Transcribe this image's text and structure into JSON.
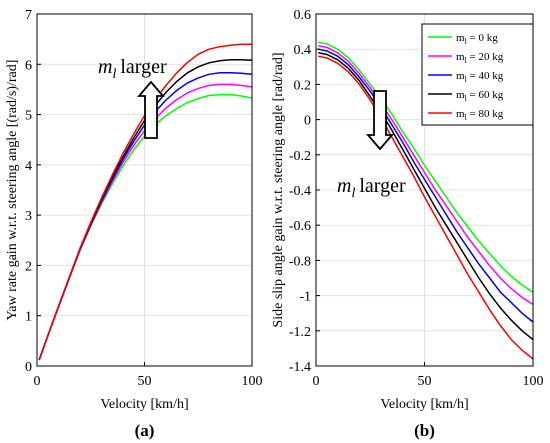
{
  "chart_data": [
    {
      "type": "line",
      "panel_label": "(a)",
      "xlabel": "Velocity [km/h]",
      "ylabel": "Yaw rate gain w.r.t. steering angle [(rad/s)/rad]",
      "xlim": [
        0,
        100
      ],
      "ylim": [
        0,
        7
      ],
      "x_ticks": [
        "0",
        "50",
        "100"
      ],
      "y_ticks": [
        "0",
        "1",
        "2",
        "3",
        "4",
        "5",
        "6",
        "7"
      ],
      "grid": true,
      "annotation": {
        "symbol": "m",
        "subscript": "l",
        "text": "larger",
        "arrow": "up"
      },
      "x": [
        1,
        5,
        10,
        15,
        20,
        25,
        30,
        35,
        40,
        45,
        50,
        55,
        60,
        65,
        70,
        75,
        80,
        85,
        90,
        95,
        100
      ],
      "series": [
        {
          "name": "m_l = 0 kg",
          "color": "#00ff00",
          "values": [
            0.12,
            0.6,
            1.18,
            1.75,
            2.3,
            2.78,
            3.22,
            3.62,
            3.98,
            4.3,
            4.57,
            4.8,
            4.98,
            5.12,
            5.24,
            5.32,
            5.38,
            5.4,
            5.4,
            5.37,
            5.33
          ]
        },
        {
          "name": "m_l = 20 kg",
          "color": "#ff00ff",
          "values": [
            0.12,
            0.6,
            1.18,
            1.75,
            2.31,
            2.8,
            3.25,
            3.67,
            4.05,
            4.39,
            4.68,
            4.92,
            5.13,
            5.3,
            5.43,
            5.52,
            5.58,
            5.6,
            5.6,
            5.58,
            5.55
          ]
        },
        {
          "name": "m_l = 40 kg",
          "color": "#0000ff",
          "values": [
            0.12,
            0.6,
            1.18,
            1.76,
            2.32,
            2.82,
            3.28,
            3.71,
            4.11,
            4.47,
            4.79,
            5.06,
            5.29,
            5.48,
            5.63,
            5.73,
            5.8,
            5.83,
            5.83,
            5.82,
            5.8
          ]
        },
        {
          "name": "m_l = 60 kg",
          "color": "#000000",
          "values": [
            0.12,
            0.6,
            1.19,
            1.76,
            2.33,
            2.84,
            3.31,
            3.75,
            4.16,
            4.54,
            4.88,
            5.18,
            5.44,
            5.66,
            5.83,
            5.95,
            6.03,
            6.07,
            6.09,
            6.09,
            6.08
          ]
        },
        {
          "name": "m_l = 80 kg",
          "color": "#ff0000",
          "values": [
            0.12,
            0.6,
            1.19,
            1.77,
            2.34,
            2.86,
            3.34,
            3.8,
            4.23,
            4.62,
            4.98,
            5.3,
            5.58,
            5.83,
            6.04,
            6.2,
            6.3,
            6.35,
            6.38,
            6.4,
            6.4
          ]
        }
      ]
    },
    {
      "type": "line",
      "panel_label": "(b)",
      "xlabel": "Velocity [km/h]",
      "ylabel": "Side slip angle gain w.r.t. steering angle [rad/rad]",
      "xlim": [
        0,
        100
      ],
      "ylim": [
        -1.4,
        0.6
      ],
      "x_ticks": [
        "0",
        "50",
        "100"
      ],
      "y_ticks": [
        "-1.4",
        "-1.2",
        "-1",
        "-0.8",
        "-0.6",
        "-0.4",
        "-0.2",
        "0",
        "0.2",
        "0.4",
        "0.6"
      ],
      "grid": true,
      "legend_position": "top-right",
      "annotation": {
        "symbol": "m",
        "subscript": "l",
        "text": "larger",
        "arrow": "down"
      },
      "x": [
        1,
        5,
        10,
        15,
        20,
        25,
        30,
        35,
        40,
        45,
        50,
        55,
        60,
        65,
        70,
        75,
        80,
        85,
        90,
        95,
        100
      ],
      "series": [
        {
          "name": "m_l = 0 kg",
          "color": "#00ff00",
          "values": [
            0.44,
            0.43,
            0.4,
            0.35,
            0.28,
            0.2,
            0.12,
            0.03,
            -0.07,
            -0.16,
            -0.26,
            -0.35,
            -0.44,
            -0.53,
            -0.61,
            -0.69,
            -0.76,
            -0.83,
            -0.89,
            -0.94,
            -0.98
          ]
        },
        {
          "name": "m_l = 20 kg",
          "color": "#ff00ff",
          "values": [
            0.42,
            0.41,
            0.38,
            0.33,
            0.26,
            0.18,
            0.09,
            0.0,
            -0.1,
            -0.2,
            -0.3,
            -0.4,
            -0.49,
            -0.58,
            -0.67,
            -0.75,
            -0.83,
            -0.9,
            -0.96,
            -1.01,
            -1.05
          ]
        },
        {
          "name": "m_l = 40 kg",
          "color": "#0000ff",
          "values": [
            0.4,
            0.39,
            0.36,
            0.31,
            0.24,
            0.16,
            0.07,
            -0.03,
            -0.13,
            -0.24,
            -0.34,
            -0.44,
            -0.54,
            -0.64,
            -0.73,
            -0.82,
            -0.9,
            -0.98,
            -1.04,
            -1.1,
            -1.15
          ]
        },
        {
          "name": "m_l = 60 kg",
          "color": "#000000",
          "values": [
            0.38,
            0.37,
            0.34,
            0.29,
            0.22,
            0.13,
            0.04,
            -0.06,
            -0.17,
            -0.28,
            -0.39,
            -0.5,
            -0.6,
            -0.7,
            -0.8,
            -0.9,
            -0.99,
            -1.07,
            -1.14,
            -1.2,
            -1.25
          ]
        },
        {
          "name": "m_l = 80 kg",
          "color": "#ff0000",
          "values": [
            0.36,
            0.35,
            0.32,
            0.27,
            0.2,
            0.11,
            0.01,
            -0.1,
            -0.21,
            -0.32,
            -0.44,
            -0.55,
            -0.66,
            -0.77,
            -0.88,
            -0.98,
            -1.08,
            -1.17,
            -1.25,
            -1.31,
            -1.36
          ]
        }
      ]
    }
  ]
}
